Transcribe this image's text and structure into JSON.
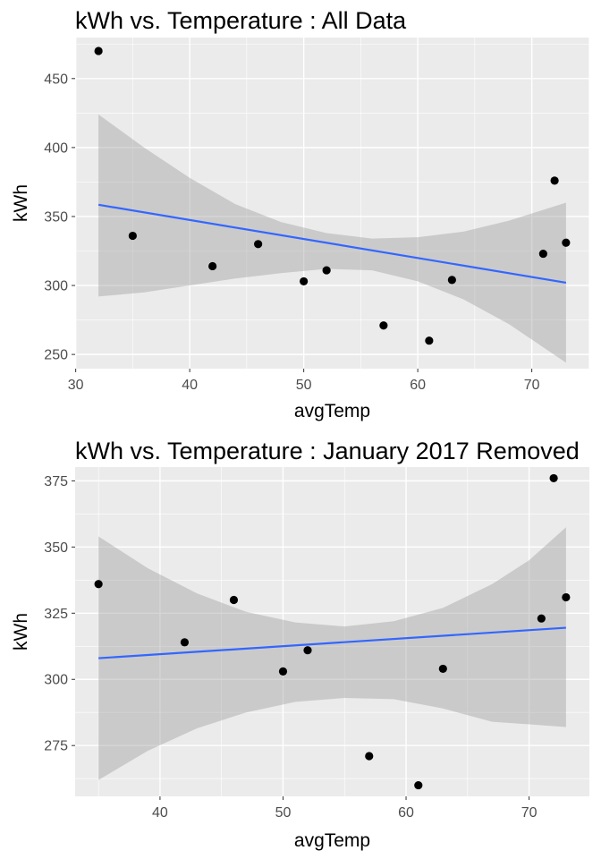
{
  "chart_data": [
    {
      "type": "scatter",
      "title": "kWh vs. Temperature : All Data",
      "xlabel": "avgTemp",
      "ylabel": "kWh",
      "xlim": [
        29.95,
        75.05
      ],
      "ylim": [
        239.7,
        479.7
      ],
      "xticks": [
        30,
        40,
        50,
        60,
        70
      ],
      "yticks": [
        250,
        300,
        350,
        400,
        450
      ],
      "grid": true,
      "points": [
        {
          "x": 32,
          "y": 470
        },
        {
          "x": 35,
          "y": 336
        },
        {
          "x": 42,
          "y": 314
        },
        {
          "x": 46,
          "y": 330
        },
        {
          "x": 50,
          "y": 303
        },
        {
          "x": 52,
          "y": 311
        },
        {
          "x": 57,
          "y": 271
        },
        {
          "x": 61,
          "y": 260
        },
        {
          "x": 63,
          "y": 304
        },
        {
          "x": 71,
          "y": 323
        },
        {
          "x": 72,
          "y": 376
        },
        {
          "x": 73,
          "y": 331
        }
      ],
      "fit_line": {
        "x": [
          32,
          73
        ],
        "y": [
          358.5,
          302
        ]
      },
      "confidence_band": {
        "x": [
          32,
          36,
          40,
          44,
          48,
          52,
          56,
          60,
          64,
          68,
          73
        ],
        "upper": [
          424,
          400,
          378,
          359,
          346,
          338,
          334,
          335,
          339,
          347,
          360
        ],
        "lower": [
          292,
          295,
          300,
          305,
          309,
          312,
          311,
          303,
          290,
          272,
          244
        ]
      },
      "colors": {
        "points": "#000000",
        "fit_line": "#3366ff",
        "band": "#999999",
        "panel": "#ebebeb",
        "grid": "#ffffff"
      }
    },
    {
      "type": "scatter",
      "title": "kWh vs. Temperature : January 2017 Removed",
      "xlabel": "avgTemp",
      "ylabel": "kWh",
      "xlim": [
        33.1,
        74.9
      ],
      "ylim": [
        255.8,
        380.2
      ],
      "xticks": [
        40,
        50,
        60,
        70
      ],
      "yticks": [
        275,
        300,
        325,
        350,
        375
      ],
      "grid": true,
      "points": [
        {
          "x": 35,
          "y": 336
        },
        {
          "x": 42,
          "y": 314
        },
        {
          "x": 46,
          "y": 330
        },
        {
          "x": 50,
          "y": 303
        },
        {
          "x": 52,
          "y": 311
        },
        {
          "x": 57,
          "y": 271
        },
        {
          "x": 61,
          "y": 260
        },
        {
          "x": 63,
          "y": 304
        },
        {
          "x": 71,
          "y": 323
        },
        {
          "x": 72,
          "y": 376
        },
        {
          "x": 73,
          "y": 331
        }
      ],
      "fit_line": {
        "x": [
          35,
          73
        ],
        "y": [
          308,
          319.5
        ]
      },
      "confidence_band": {
        "x": [
          35,
          39,
          43,
          47,
          51,
          55,
          59,
          63,
          67,
          70,
          73
        ],
        "upper": [
          354,
          342,
          332.5,
          325.5,
          321.5,
          320,
          322,
          327,
          336,
          345,
          357.5
        ],
        "lower": [
          262,
          273,
          281.5,
          287.5,
          291.5,
          293,
          292.5,
          289,
          284,
          283,
          282
        ]
      },
      "colors": {
        "points": "#000000",
        "fit_line": "#3366ff",
        "band": "#999999",
        "panel": "#ebebeb",
        "grid": "#ffffff"
      }
    }
  ]
}
